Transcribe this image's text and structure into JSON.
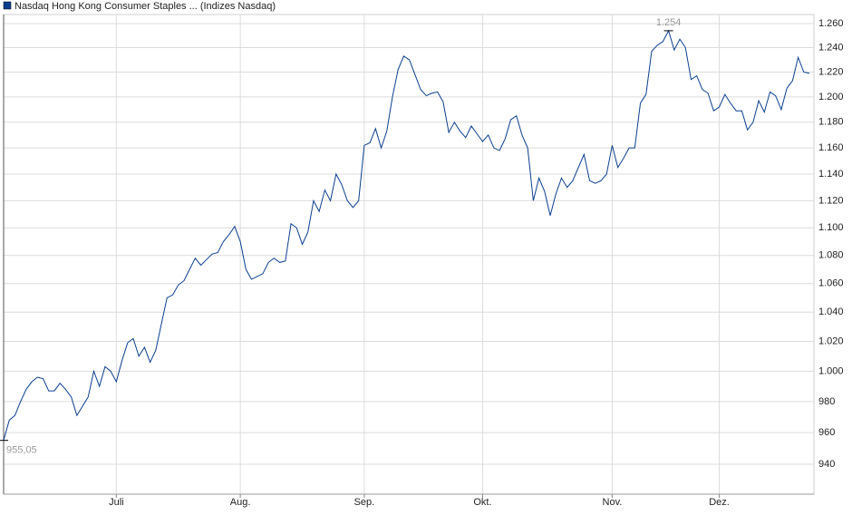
{
  "chart_data": {
    "type": "line",
    "legend": "top-left",
    "grid": true,
    "yscale": "log",
    "series": [
      {
        "name": "Nasdaq Hong Kong Consumer Staples ... (Indizes Nasdaq)",
        "color": "#0b3f8f",
        "values": [
          955.05,
          968,
          971,
          980,
          988,
          993,
          996,
          995,
          987,
          987,
          992,
          988,
          983,
          971,
          977,
          983,
          1000,
          990,
          1003,
          1000,
          993,
          1007,
          1019,
          1022,
          1010,
          1016,
          1006,
          1014,
          1032,
          1050,
          1052,
          1059,
          1062,
          1070,
          1078,
          1073,
          1077,
          1081,
          1082,
          1090,
          1095,
          1101,
          1090,
          1070,
          1063,
          1065,
          1067,
          1075,
          1078,
          1075,
          1076,
          1103,
          1100,
          1088,
          1097,
          1120,
          1112,
          1128,
          1120,
          1140,
          1132,
          1120,
          1115,
          1120,
          1162,
          1164,
          1175,
          1160,
          1173,
          1200,
          1222,
          1233,
          1230,
          1218,
          1206,
          1201,
          1203,
          1204,
          1196,
          1172,
          1180,
          1173,
          1168,
          1177,
          1171,
          1165,
          1170,
          1160,
          1158,
          1167,
          1182,
          1185,
          1170,
          1160,
          1120,
          1137,
          1127,
          1109,
          1125,
          1137,
          1130,
          1135,
          1145,
          1155,
          1135,
          1133,
          1135,
          1140,
          1162,
          1145,
          1152,
          1160,
          1160,
          1195,
          1202,
          1237,
          1242,
          1245,
          1254,
          1238,
          1247,
          1240,
          1214,
          1217,
          1206,
          1203,
          1189,
          1192,
          1202,
          1195,
          1189,
          1189,
          1174,
          1180,
          1197,
          1188,
          1204,
          1201,
          1190,
          1207,
          1213,
          1232,
          1220,
          1219
        ]
      }
    ],
    "xlim": [
      0,
      143.8
    ],
    "xticks": [
      {
        "value": 20,
        "label": "Juli"
      },
      {
        "value": 42,
        "label": "Aug."
      },
      {
        "value": 64,
        "label": "Sep."
      },
      {
        "value": 85,
        "label": "Okt."
      },
      {
        "value": 108,
        "label": "Nov."
      },
      {
        "value": 127,
        "label": "Dez."
      }
    ],
    "ylim": [
      921.5,
      1267.6
    ],
    "yticks": [
      940,
      960,
      980,
      {
        "value": 1000,
        "label": "1.000"
      },
      {
        "value": 1020,
        "label": "1.020"
      },
      {
        "value": 1040,
        "label": "1.040"
      },
      {
        "value": 1060,
        "label": "1.060"
      },
      {
        "value": 1080,
        "label": "1.080"
      },
      {
        "value": 1100,
        "label": "1.100"
      },
      {
        "value": 1120,
        "label": "1.120"
      },
      {
        "value": 1140,
        "label": "1.140"
      },
      {
        "value": 1160,
        "label": "1.160"
      },
      {
        "value": 1180,
        "label": "1.180"
      },
      {
        "value": 1200,
        "label": "1.200"
      },
      {
        "value": 1220,
        "label": "1.220"
      },
      {
        "value": 1240,
        "label": "1.240"
      },
      {
        "value": 1260,
        "label": "1.260"
      }
    ],
    "annotations": [
      {
        "x": 118,
        "value": 1254,
        "label": "1.254"
      },
      {
        "x": 0,
        "value": 955.05,
        "label": "955,05"
      }
    ]
  }
}
